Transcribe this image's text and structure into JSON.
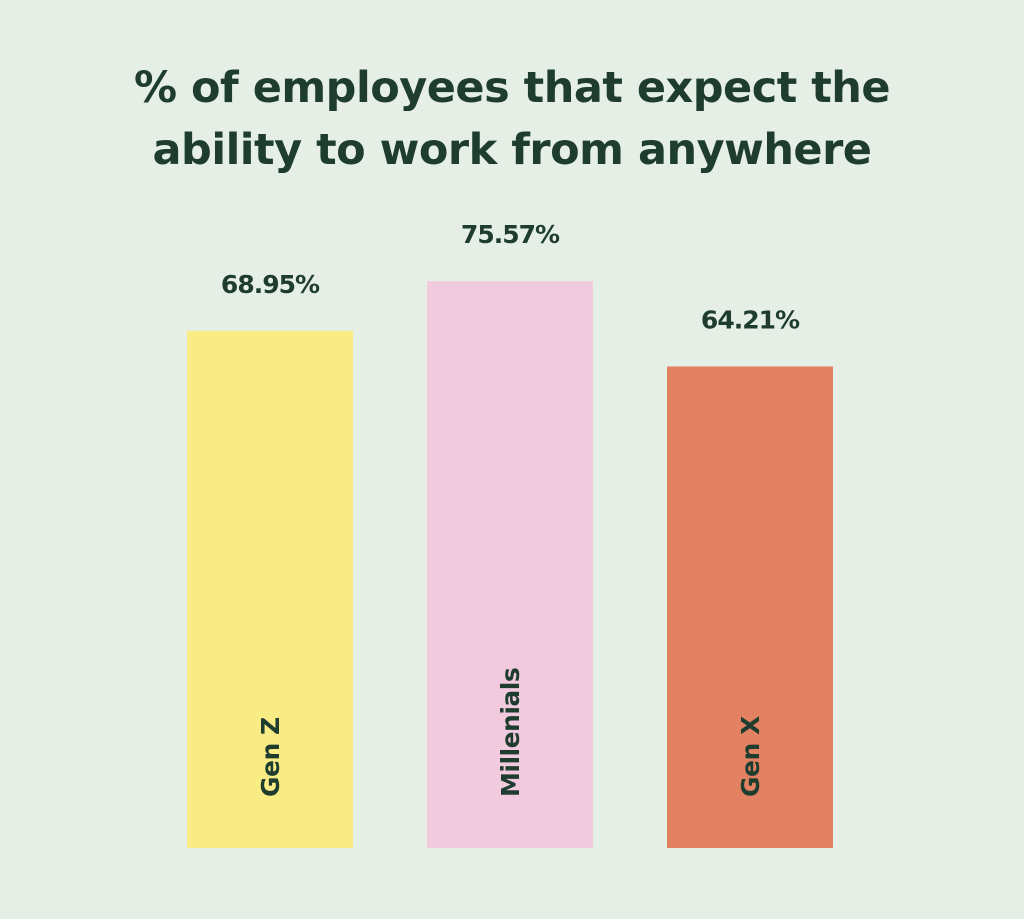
{
  "chart_data": {
    "type": "bar",
    "title_lines": [
      "% of employees that expect the",
      "ability to work from anywhere"
    ],
    "categories": [
      "Gen Z",
      "Millenials",
      "Gen X"
    ],
    "values": [
      68.95,
      75.57,
      64.21
    ],
    "value_labels": [
      "68.95%",
      "75.57%",
      "64.21%"
    ],
    "colors": [
      "#f9ec84",
      "#f2cade",
      "#e38263"
    ],
    "ylim": [
      0,
      100
    ],
    "grid": false,
    "legend": "none"
  }
}
